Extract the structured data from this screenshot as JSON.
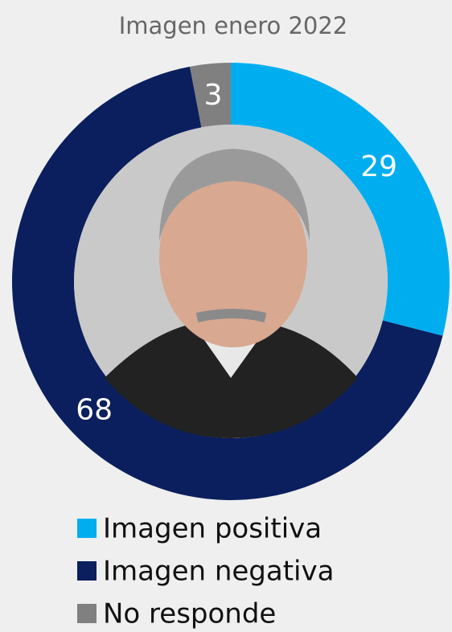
{
  "chart_data": {
    "type": "pie",
    "title": "Imagen enero 2022",
    "series": [
      {
        "name": "Imagen positiva",
        "color": "#00aeef",
        "values": [
          29
        ]
      },
      {
        "name": "Imagen negativa",
        "color": "#0b1f5e",
        "values": [
          68
        ]
      },
      {
        "name": "No responde",
        "color": "#808080",
        "values": [
          3
        ]
      }
    ]
  }
}
